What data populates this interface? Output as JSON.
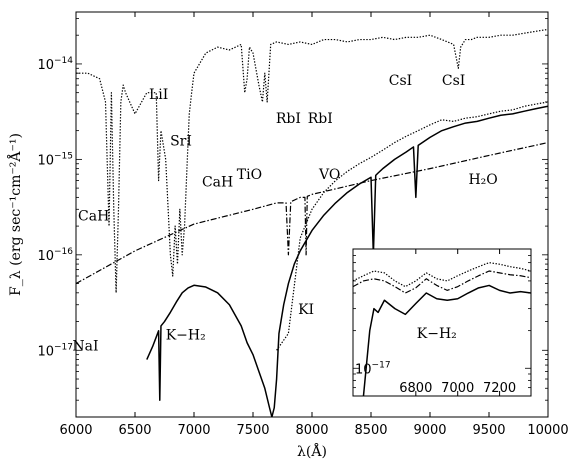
{
  "chart_data": [
    {
      "type": "line",
      "title": "",
      "xlabel": "λ(Å)",
      "ylabel": "F_λ (erg sec⁻¹cm⁻²Å⁻¹)",
      "x_scale": "linear",
      "y_scale": "log",
      "xlim": [
        6000,
        10000
      ],
      "ylim": [
        2e-18,
        3.5e-14
      ],
      "x_ticks": [
        {
          "value": 6000,
          "label": "6000"
        },
        {
          "value": 6500,
          "label": "6500"
        },
        {
          "value": 7000,
          "label": "7000"
        },
        {
          "value": 7500,
          "label": "7500"
        },
        {
          "value": 8000,
          "label": "8000"
        },
        {
          "value": 8500,
          "label": "8500"
        },
        {
          "value": 9000,
          "label": "9000"
        },
        {
          "value": 9500,
          "label": "9500"
        },
        {
          "value": 10000,
          "label": "10000"
        }
      ],
      "y_ticks": [
        {
          "value": 1e-17,
          "base": "10",
          "exp": "−17"
        },
        {
          "value": 1e-16,
          "base": "10",
          "exp": "−16"
        },
        {
          "value": 1e-15,
          "base": "10",
          "exp": "−15"
        },
        {
          "value": 1e-14,
          "base": "10",
          "exp": "−14"
        }
      ],
      "grid": false,
      "series": [
        {
          "style": "dotted",
          "x": [
            6000,
            6100,
            6200,
            6250,
            6280,
            6300,
            6320,
            6340,
            6360,
            6380,
            6400,
            6420,
            6500,
            6600,
            6680,
            6700,
            6720,
            6760,
            6800,
            6820,
            6840,
            6860,
            6880,
            6900,
            6920,
            6940,
            6960,
            6980,
            7000,
            7100,
            7200,
            7300,
            7400,
            7430,
            7450,
            7470,
            7500,
            7550,
            7580,
            7600,
            7620,
            7650,
            7700,
            7800,
            7900,
            8000,
            8100,
            8200,
            8300,
            8400,
            8500,
            8600,
            8700,
            8800,
            8900,
            9000,
            9100,
            9200,
            9240,
            9260,
            9300,
            9350,
            9400,
            9500,
            9600,
            9700,
            9800,
            9900,
            10000
          ],
          "y": [
            8e-15,
            8e-15,
            7e-15,
            4e-15,
            2e-16,
            5e-15,
            3e-16,
            4e-17,
            3e-16,
            4e-15,
            6e-15,
            5e-15,
            3e-15,
            5e-15,
            5e-15,
            6e-16,
            2e-15,
            1e-15,
            1e-16,
            6e-17,
            2e-16,
            8e-17,
            3e-16,
            1e-16,
            2e-16,
            8e-16,
            3e-15,
            5e-15,
            8e-15,
            1.3e-14,
            1.5e-14,
            1.4e-14,
            1.6e-14,
            5e-15,
            7e-15,
            1.5e-14,
            1.3e-14,
            6e-15,
            4e-15,
            8e-15,
            4e-15,
            1.6e-14,
            1.7e-14,
            1.6e-14,
            1.7e-14,
            1.6e-14,
            1.8e-14,
            1.8e-14,
            1.7e-14,
            1.8e-14,
            1.8e-14,
            1.9e-14,
            1.8e-14,
            1.9e-14,
            1.9e-14,
            2e-14,
            1.8e-14,
            1.6e-14,
            9e-15,
            1.5e-14,
            1.8e-14,
            1.8e-14,
            1.9e-14,
            1.9e-14,
            2e-14,
            2e-14,
            2.1e-14,
            2.2e-14,
            2.3e-14
          ]
        },
        {
          "style": "dashdot",
          "x": [
            6000,
            6500,
            7000,
            7500,
            7700,
            7780,
            7800,
            7820,
            7900,
            7940,
            7950,
            7960,
            8000,
            8500,
            9000,
            9500,
            10000
          ],
          "y": [
            5e-17,
            1.1e-16,
            2.1e-16,
            3e-16,
            3.5e-16,
            3.5e-16,
            1e-16,
            3.6e-16,
            4e-16,
            4e-16,
            1e-16,
            4.1e-16,
            4.3e-16,
            6e-16,
            8e-16,
            1.1e-15,
            1.5e-15
          ]
        },
        {
          "style": "dotted",
          "x": [
            7700,
            7800,
            7900,
            8000,
            8100,
            8200,
            8300,
            8400,
            8500,
            8600,
            8700,
            8800,
            8900,
            9000,
            9100,
            9200,
            9300,
            9400,
            9500,
            9600,
            9700,
            9800,
            9900,
            10000
          ],
          "y": [
            1e-17,
            1.5e-17,
            1.5e-16,
            3e-16,
            4.5e-16,
            6e-16,
            7.5e-16,
            9e-16,
            1.05e-15,
            1.25e-15,
            1.5e-15,
            1.75e-15,
            2e-15,
            2.3e-15,
            2.6e-15,
            2.5e-15,
            2.7e-15,
            2.8e-15,
            3e-15,
            3.2e-15,
            3.3e-15,
            3.6e-15,
            3.8e-15,
            4e-15
          ]
        },
        {
          "style": "solid",
          "x": [
            6000,
            6500,
            6600,
            6650,
            6700,
            6710,
            6720,
            6750,
            6800,
            6850,
            6900,
            6950,
            7000,
            7100,
            7200,
            7300,
            7400,
            7450,
            7500,
            7550,
            7600,
            7640,
            7660,
            7680,
            7700,
            7720,
            7760,
            7800,
            7850,
            7900,
            8000,
            8100,
            8200,
            8300,
            8400,
            8500,
            8520,
            8540,
            8560,
            8600,
            8700,
            8800,
            8860,
            8880,
            8900,
            9000,
            9100,
            9200,
            9300,
            9400,
            9500,
            9600,
            9700,
            9800,
            9900,
            10000
          ],
          "y": [
            null,
            null,
            8e-18,
            1.1e-17,
            1.6e-17,
            3e-18,
            1.8e-17,
            2e-17,
            2.5e-17,
            3.2e-17,
            4e-17,
            4.5e-17,
            4.8e-17,
            4.6e-17,
            4e-17,
            3e-17,
            1.8e-17,
            1.2e-17,
            9e-18,
            6e-18,
            4e-18,
            2.5e-18,
            2e-18,
            2.5e-18,
            5e-18,
            1.5e-17,
            3e-17,
            5e-17,
            8e-17,
            1.1e-16,
            1.8e-16,
            2.6e-16,
            3.5e-16,
            4.5e-16,
            5.5e-16,
            6.5e-16,
            1e-16,
            6.8e-16,
            7.2e-16,
            8e-16,
            1e-15,
            1.2e-15,
            1.35e-15,
            4e-16,
            1.4e-15,
            1.7e-15,
            2e-15,
            2.2e-15,
            2.4e-15,
            2.5e-15,
            2.7e-15,
            2.9e-15,
            3e-15,
            3.2e-15,
            3.4e-15,
            3.6e-15
          ]
        }
      ],
      "annotations": [
        {
          "text": "NaI",
          "x": 6080,
          "y": 1e-17
        },
        {
          "text": "LiI",
          "x": 6700,
          "y": 4.3e-15
        },
        {
          "text": "SrI",
          "x": 6890,
          "y": 1.4e-15
        },
        {
          "text": "CaH",
          "x": 6150,
          "y": 2.3e-16
        },
        {
          "text": "CaH",
          "x": 7200,
          "y": 5.2e-16
        },
        {
          "text": "TiO",
          "x": 7470,
          "y": 6.2e-16
        },
        {
          "text": "RbI",
          "x": 7800,
          "y": 2.4e-15
        },
        {
          "text": "RbI",
          "x": 8070,
          "y": 2.4e-15
        },
        {
          "text": "VO",
          "x": 8150,
          "y": 6.2e-16
        },
        {
          "text": "CsI",
          "x": 8750,
          "y": 6e-15
        },
        {
          "text": "CsI",
          "x": 9200,
          "y": 6e-15
        },
        {
          "text": "KI",
          "x": 7950,
          "y": 2.4e-17
        },
        {
          "text": "K−H₂",
          "x": 6930,
          "y": 1.3e-17
        },
        {
          "text": "H₂O",
          "x": 9450,
          "y": 5.5e-16
        }
      ],
      "legend": "none"
    },
    {
      "type": "line",
      "title": "",
      "x_scale": "linear",
      "y_scale": "log",
      "xlim": [
        6500,
        7350
      ],
      "ylim": [
        6e-18,
        9e-17
      ],
      "x_ticks": [
        {
          "value": 6800,
          "label": "6800"
        },
        {
          "value": 7000,
          "label": "7000"
        },
        {
          "value": 7200,
          "label": "7200"
        }
      ],
      "y_ticks": [
        {
          "value": 1e-17,
          "base": "10",
          "exp": "−17"
        }
      ],
      "series": [
        {
          "style": "dotted",
          "x": [
            6500,
            6550,
            6600,
            6650,
            6700,
            6750,
            6800,
            6850,
            6900,
            6950,
            7000,
            7050,
            7100,
            7150,
            7200,
            7250,
            7300,
            7350
          ],
          "y": [
            5e-17,
            5.5e-17,
            6e-17,
            5.8e-17,
            5e-17,
            4.5e-17,
            5e-17,
            5.8e-17,
            5.2e-17,
            5e-17,
            5.5e-17,
            6e-17,
            6.5e-17,
            7e-17,
            6.8e-17,
            6.5e-17,
            6.3e-17,
            6e-17
          ]
        },
        {
          "style": "dashdot",
          "x": [
            6500,
            6550,
            6600,
            6650,
            6700,
            6750,
            6800,
            6850,
            6900,
            6950,
            7000,
            7050,
            7100,
            7150,
            7200,
            7250,
            7300,
            7350
          ],
          "y": [
            4.5e-17,
            5e-17,
            5.2e-17,
            5e-17,
            4.5e-17,
            4e-17,
            4.4e-17,
            5.2e-17,
            4.6e-17,
            4.2e-17,
            4.5e-17,
            5e-17,
            5.5e-17,
            6e-17,
            5.8e-17,
            5.6e-17,
            5.5e-17,
            5.3e-17
          ]
        },
        {
          "style": "solid",
          "x": [
            6550,
            6580,
            6600,
            6620,
            6650,
            6700,
            6750,
            6800,
            6850,
            6900,
            6950,
            7000,
            7050,
            7100,
            7150,
            7200,
            7250,
            7300,
            7350
          ],
          "y": [
            6e-18,
            2e-17,
            3e-17,
            2.8e-17,
            3.5e-17,
            3e-17,
            2.7e-17,
            3.3e-17,
            4e-17,
            3.6e-17,
            3.5e-17,
            3.6e-17,
            4e-17,
            4.4e-17,
            4.6e-17,
            4.2e-17,
            4e-17,
            4.1e-17,
            4e-17
          ]
        }
      ],
      "annotations": [
        {
          "text": "K−H₂",
          "x": 6900,
          "y": 1.75e-17
        }
      ],
      "legend": "none"
    }
  ]
}
